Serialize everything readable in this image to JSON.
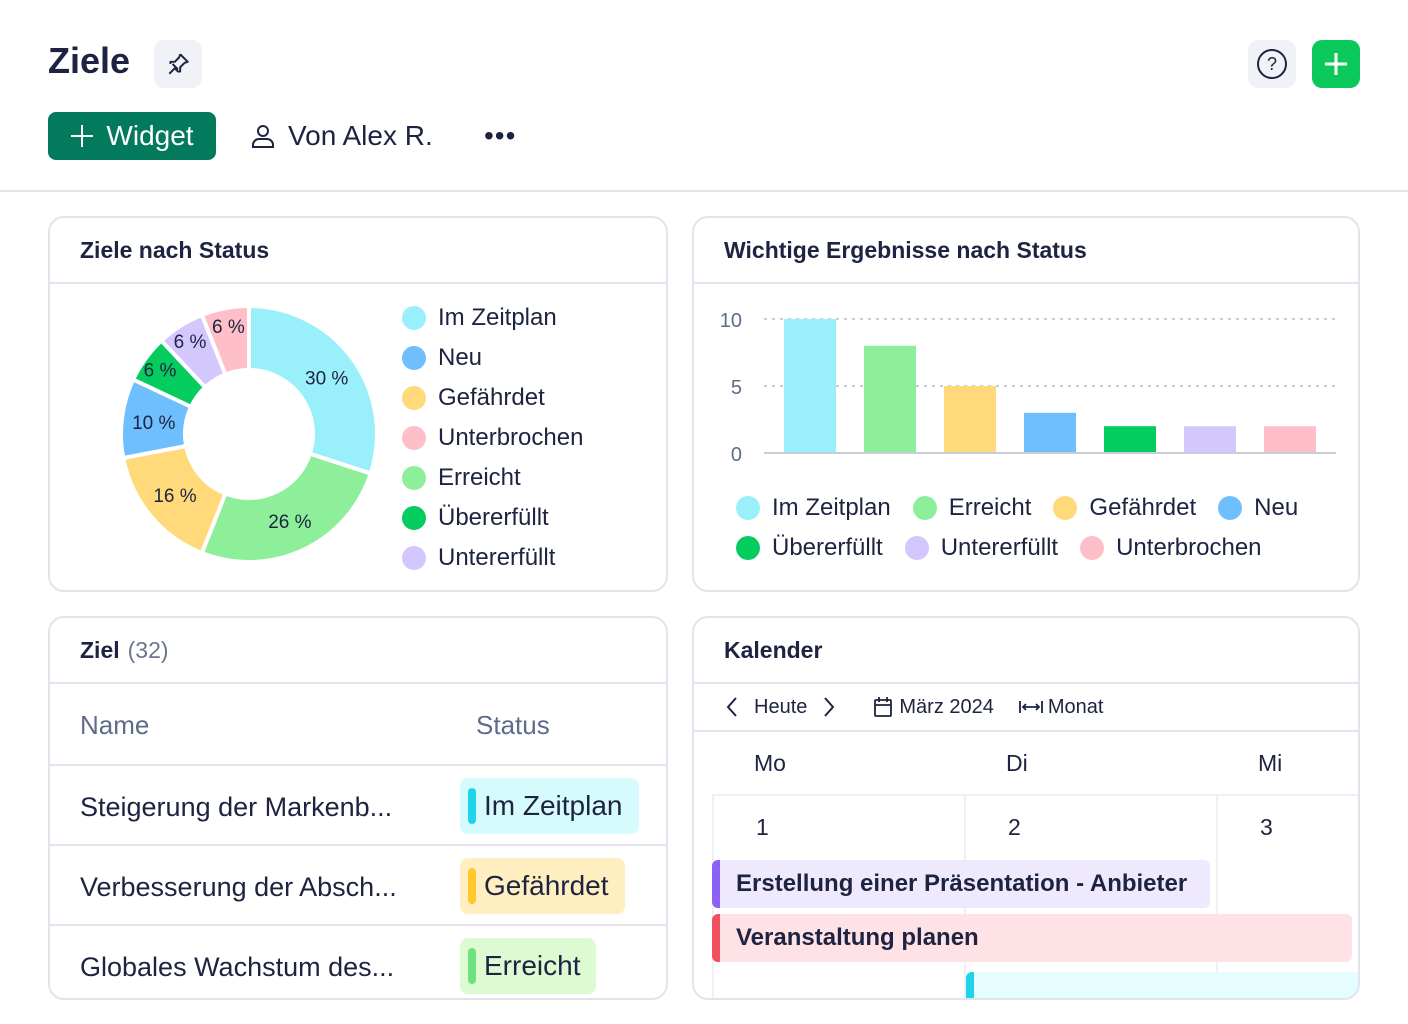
{
  "header": {
    "title": "Ziele",
    "widget_label": "Widget",
    "owner_label": "Von Alex R.",
    "more_label": "•••"
  },
  "colors": {
    "im_zeitplan": "#9af0fa",
    "neu": "#6fbfff",
    "gefaehrdet": "#ffd97a",
    "unterbrochen": "#ffbfc8",
    "erreicht": "#8eef9a",
    "uebererfuellt": "#05cc5f",
    "untererfuellt": "#d4c7fd",
    "accent": "#037a5b",
    "add": "#0bc85a"
  },
  "donut_card": {
    "title": "Ziele nach Status",
    "chart_data": {
      "type": "pie",
      "donut": true,
      "slices": [
        {
          "label": "Im Zeitplan",
          "value": 30,
          "text": "30 %",
          "color": "#9af0fa"
        },
        {
          "label": "Erreicht",
          "value": 26,
          "text": "26 %",
          "color": "#8eef9a"
        },
        {
          "label": "Gefährdet",
          "value": 16,
          "text": "16 %",
          "color": "#ffd97a"
        },
        {
          "label": "Neu",
          "value": 10,
          "text": "10 %",
          "color": "#6fbfff"
        },
        {
          "label": "Übererfüllt",
          "value": 6,
          "text": "6 %",
          "color": "#05cc5f"
        },
        {
          "label": "Untererfüllt",
          "value": 6,
          "text": "6 %",
          "color": "#d4c7fd"
        },
        {
          "label": "Unterbrochen",
          "value": 6,
          "text": "6 %",
          "color": "#ffbfc8"
        }
      ],
      "legend": [
        {
          "label": "Im Zeitplan",
          "color": "#9af0fa"
        },
        {
          "label": "Neu",
          "color": "#6fbfff"
        },
        {
          "label": "Gefährdet",
          "color": "#ffd97a"
        },
        {
          "label": "Unterbrochen",
          "color": "#ffbfc8"
        },
        {
          "label": "Erreicht",
          "color": "#8eef9a"
        },
        {
          "label": "Übererfüllt",
          "color": "#05cc5f"
        },
        {
          "label": "Untererfüllt",
          "color": "#d4c7fd"
        }
      ],
      "legend_position": "right"
    }
  },
  "bar_card": {
    "title": "Wichtige Ergebnisse nach Status",
    "chart_data": {
      "type": "bar",
      "categories": [
        "Im Zeitplan",
        "Erreicht",
        "Gefährdet",
        "Neu",
        "Übererfüllt",
        "Untererfüllt",
        "Unterbrochen"
      ],
      "values": [
        10,
        8,
        5,
        3,
        2,
        2,
        2
      ],
      "colors": [
        "#9af0fa",
        "#8eef9a",
        "#ffd97a",
        "#6fbfff",
        "#05cc5f",
        "#d4c7fd",
        "#ffbfc8"
      ],
      "yticks": [
        "0",
        "5",
        "10"
      ],
      "ylim": [
        0,
        10
      ],
      "grid": true,
      "legend_position": "bottom"
    }
  },
  "table_card": {
    "title": "Ziel",
    "count": "(32)",
    "col_name": "Name",
    "col_status": "Status",
    "rows": [
      {
        "name": "Steigerung der Markenb...",
        "status": "Im Zeitplan",
        "bg": "#d6fbfd",
        "bar": "#1fd3ea"
      },
      {
        "name": "Verbesserung der Absch...",
        "status": "Gefährdet",
        "bg": "#ffeec0",
        "bar": "#ffc82c"
      },
      {
        "name": "Globales Wachstum des...",
        "status": "Erreicht",
        "bg": "#ddfbd3",
        "bar": "#6fe07f"
      }
    ]
  },
  "calendar": {
    "title": "Kalender",
    "today": "Heute",
    "month": "März 2024",
    "view": "Monat",
    "days": [
      "Mo",
      "Di",
      "Mi"
    ],
    "dates": [
      "1",
      "2",
      "3"
    ],
    "events": [
      {
        "title": "Erstellung einer Präsentation - Anbieter",
        "bg": "#efe9fe",
        "bar": "#8c62f5"
      },
      {
        "title": "Veranstaltung planen",
        "bg": "#ffe2e6",
        "bar": "#f3505f"
      },
      {
        "title": "",
        "bg": "#e5fdfe",
        "bar": "#1fd3ea"
      }
    ]
  }
}
